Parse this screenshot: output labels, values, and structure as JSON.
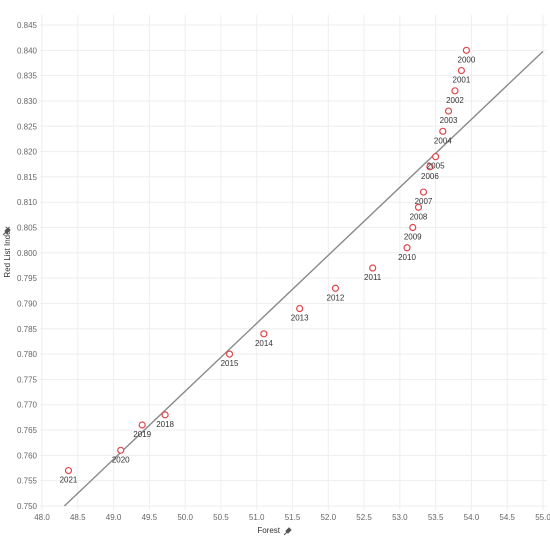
{
  "colors": {
    "point_stroke": "#e0474c",
    "trend_line": "#8a8a8a",
    "grid": "#eeeeee",
    "tick_text": "#666666"
  },
  "axes": {
    "x_title": "Forest",
    "y_title": "Red List Index",
    "x_pin_icon": "pin-icon",
    "y_pin_icon": "pin-icon"
  },
  "chart_data": {
    "type": "scatter",
    "title": "",
    "xlabel": "Forest",
    "ylabel": "Red List Index",
    "xlim": [
      48.0,
      55.0
    ],
    "ylim": [
      0.75,
      0.845
    ],
    "x_ticks": [
      "48.0",
      "48.5",
      "49.0",
      "49.5",
      "50.0",
      "50.5",
      "51.0",
      "51.5",
      "52.0",
      "52.5",
      "53.0",
      "53.5",
      "54.0",
      "54.5",
      "55.0"
    ],
    "y_ticks": [
      "0.750",
      "0.755",
      "0.760",
      "0.765",
      "0.770",
      "0.775",
      "0.780",
      "0.785",
      "0.790",
      "0.795",
      "0.800",
      "0.805",
      "0.810",
      "0.815",
      "0.820",
      "0.825",
      "0.830",
      "0.835",
      "0.840",
      "0.845"
    ],
    "grid": true,
    "trend_line": {
      "x": [
        48.0,
        55.0
      ],
      "y": [
        0.7458,
        0.8398
      ]
    },
    "points": [
      {
        "label": "2000",
        "x": 53.93,
        "y": 0.84
      },
      {
        "label": "2001",
        "x": 53.86,
        "y": 0.836
      },
      {
        "label": "2002",
        "x": 53.77,
        "y": 0.832
      },
      {
        "label": "2003",
        "x": 53.68,
        "y": 0.828
      },
      {
        "label": "2004",
        "x": 53.6,
        "y": 0.824
      },
      {
        "label": "2005",
        "x": 53.5,
        "y": 0.819
      },
      {
        "label": "2006",
        "x": 53.42,
        "y": 0.817
      },
      {
        "label": "2007",
        "x": 53.33,
        "y": 0.812
      },
      {
        "label": "2008",
        "x": 53.26,
        "y": 0.809
      },
      {
        "label": "2009",
        "x": 53.18,
        "y": 0.805
      },
      {
        "label": "2010",
        "x": 53.1,
        "y": 0.801
      },
      {
        "label": "2011",
        "x": 52.62,
        "y": 0.797
      },
      {
        "label": "2012",
        "x": 52.1,
        "y": 0.793
      },
      {
        "label": "2013",
        "x": 51.6,
        "y": 0.789
      },
      {
        "label": "2014",
        "x": 51.1,
        "y": 0.784
      },
      {
        "label": "2015",
        "x": 50.62,
        "y": 0.78
      },
      {
        "label": "2018",
        "x": 49.72,
        "y": 0.768
      },
      {
        "label": "2019",
        "x": 49.4,
        "y": 0.766
      },
      {
        "label": "2020",
        "x": 49.1,
        "y": 0.761
      },
      {
        "label": "2021",
        "x": 48.37,
        "y": 0.757
      }
    ]
  }
}
